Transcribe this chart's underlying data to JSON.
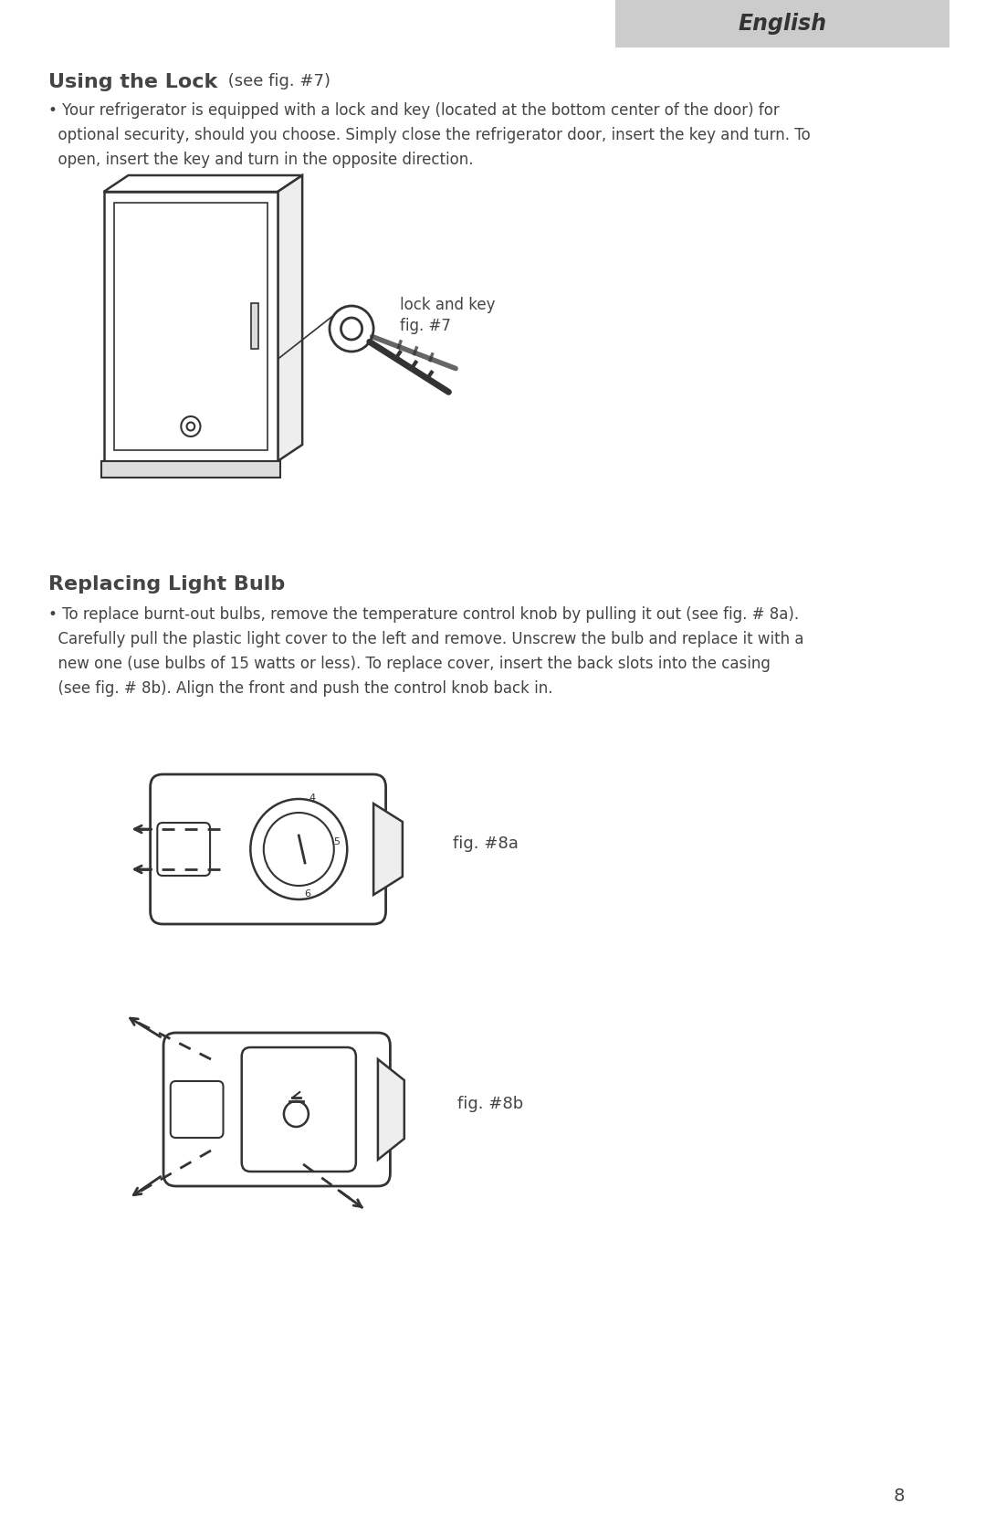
{
  "bg_color": "#ffffff",
  "header_bg": "#cccccc",
  "header_text": "English",
  "header_text_color": "#333333",
  "page_number": "8",
  "section1_title_bold": "Using the Lock",
  "section1_title_normal": " (see fig. #7)",
  "section1_body_lines": [
    "• Your refrigerator is equipped with a lock and key (located at the bottom center of the door) for",
    "  optional security, should you choose. Simply close the refrigerator door, insert the key and turn. To",
    "  open, insert the key and turn in the opposite direction."
  ],
  "fig7_label1": "lock and key",
  "fig7_label2": "fig. #7",
  "section2_title": "Replacing Light Bulb",
  "section2_body_lines": [
    "• To replace burnt-out bulbs, remove the temperature control knob by pulling it out (see fig. # 8a).",
    "  Carefully pull the plastic light cover to the left and remove. Unscrew the bulb and replace it with a",
    "  new one (use bulbs of 15 watts or less). To replace cover, insert the back slots into the casing",
    "  (see fig. # 8b). Align the front and push the control knob back in."
  ],
  "fig8a_label": "fig. #8a",
  "fig8b_label": "fig. #8b",
  "text_color": "#444444",
  "line_color": "#333333"
}
